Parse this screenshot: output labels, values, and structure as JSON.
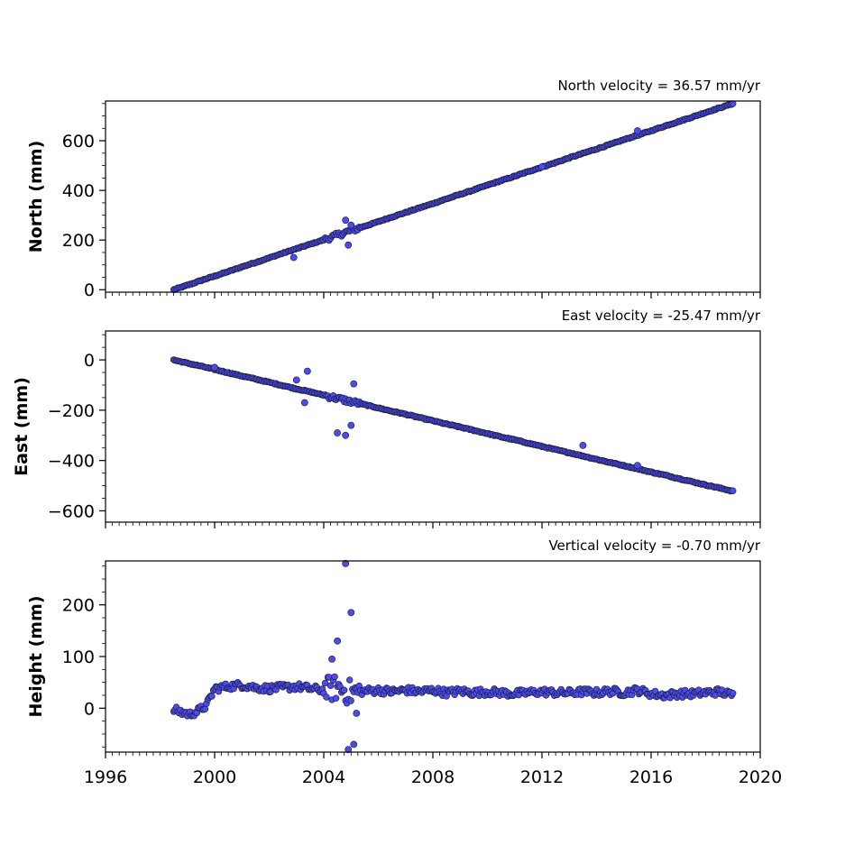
{
  "colors": {
    "marker_fill": "#4b4bf0",
    "marker_edge": "#1a1a2e",
    "axis": "#000000"
  },
  "chart_data": [
    {
      "type": "scatter",
      "title": "North velocity = 36.57 mm/yr",
      "ylabel": "North (mm)",
      "xlabel": "",
      "xlim": [
        1996,
        2020
      ],
      "ylim": [
        -10,
        760
      ],
      "yticks": [
        0,
        200,
        400,
        600
      ],
      "ytick_labels": [
        "0",
        "200",
        "400",
        "600"
      ],
      "show_xtick_labels": false,
      "grid": false,
      "series": [
        {
          "x": [
            1998.5,
            1999.0,
            1999.5,
            2000.0,
            2000.5,
            2001.0,
            2001.5,
            2002.0,
            2002.5,
            2003.0,
            2003.5,
            2004.0,
            2004.5,
            2004.8,
            2005.0,
            2005.2,
            2005.5,
            2006.0,
            2006.5,
            2007.0,
            2007.5,
            2008.0,
            2008.5,
            2009.0,
            2009.5,
            2010.0,
            2010.5,
            2011.0,
            2011.5,
            2012.0,
            2012.5,
            2013.0,
            2013.5,
            2014.0,
            2014.5,
            2015.0,
            2015.5,
            2016.0,
            2016.5,
            2017.0,
            2017.5,
            2018.0,
            2018.5,
            2019.0
          ],
          "y": [
            0,
            18,
            37,
            55,
            73,
            92,
            110,
            128,
            147,
            165,
            183,
            201,
            220,
            231,
            238,
            245,
            256,
            274,
            293,
            311,
            329,
            347,
            366,
            384,
            402,
            421,
            439,
            457,
            476,
            494,
            512,
            531,
            549,
            567,
            585,
            604,
            622,
            640,
            659,
            677,
            695,
            714,
            732,
            750
          ]
        }
      ],
      "outliers": {
        "x": [
          2002.9,
          2004.8,
          2004.9,
          2005.0,
          2012.0,
          2015.5
        ],
        "y": [
          130,
          280,
          180,
          260,
          495,
          640
        ]
      }
    },
    {
      "type": "scatter",
      "title": "East velocity = -25.47 mm/yr",
      "ylabel": "East (mm)",
      "xlabel": "",
      "xlim": [
        1996,
        2020
      ],
      "ylim": [
        -645,
        115
      ],
      "yticks": [
        0,
        -200,
        -400,
        -600
      ],
      "ytick_labels": [
        "0",
        "−200",
        "−400",
        "−600"
      ],
      "show_xtick_labels": false,
      "grid": false,
      "series": [
        {
          "x": [
            1998.5,
            1999.0,
            1999.5,
            2000.0,
            2000.5,
            2001.0,
            2001.5,
            2002.0,
            2002.5,
            2003.0,
            2003.5,
            2004.0,
            2004.5,
            2005.0,
            2005.5,
            2006.0,
            2006.5,
            2007.0,
            2007.5,
            2008.0,
            2008.5,
            2009.0,
            2009.5,
            2010.0,
            2010.5,
            2011.0,
            2011.5,
            2012.0,
            2012.5,
            2013.0,
            2013.5,
            2014.0,
            2014.5,
            2015.0,
            2015.5,
            2016.0,
            2016.5,
            2017.0,
            2017.5,
            2018.0,
            2018.5,
            2019.0
          ],
          "y": [
            0,
            -13,
            -25,
            -38,
            -51,
            -64,
            -76,
            -89,
            -102,
            -115,
            -127,
            -140,
            -153,
            -166,
            -178,
            -191,
            -204,
            -216,
            -229,
            -242,
            -255,
            -267,
            -280,
            -293,
            -306,
            -318,
            -331,
            -344,
            -357,
            -369,
            -382,
            -395,
            -408,
            -420,
            -433,
            -446,
            -458,
            -471,
            -484,
            -497,
            -509,
            -522
          ]
        }
      ],
      "outliers": {
        "x": [
          2000.0,
          2003.0,
          2003.3,
          2003.4,
          2004.5,
          2004.8,
          2005.0,
          2005.1,
          2013.5,
          2015.5
        ],
        "y": [
          -30,
          -80,
          -170,
          -45,
          -290,
          -300,
          -260,
          -95,
          -340,
          -420
        ]
      }
    },
    {
      "type": "scatter",
      "title": "Vertical velocity = -0.70 mm/yr",
      "ylabel": "Height (mm)",
      "xlabel": "",
      "xlim": [
        1996,
        2020
      ],
      "ylim": [
        -85,
        285
      ],
      "yticks": [
        0,
        100,
        200
      ],
      "ytick_labels": [
        "0",
        "100",
        "200"
      ],
      "xticks": [
        1996,
        2000,
        2004,
        2008,
        2012,
        2016,
        2020
      ],
      "xtick_labels": [
        "1996",
        "2000",
        "2004",
        "2008",
        "2012",
        "2016",
        "2020"
      ],
      "show_xtick_labels": true,
      "grid": false,
      "series": [
        {
          "x": [
            1998.5,
            1998.8,
            1999.1,
            1999.4,
            1999.7,
            2000.0,
            2000.5,
            2001.0,
            2001.5,
            2002.0,
            2002.5,
            2003.0,
            2003.5,
            2004.0,
            2004.5,
            2005.0,
            2005.5,
            2006.0,
            2006.5,
            2007.0,
            2007.5,
            2008.0,
            2008.5,
            2009.0,
            2009.5,
            2010.0,
            2010.5,
            2011.0,
            2011.5,
            2012.0,
            2012.5,
            2013.0,
            2013.5,
            2014.0,
            2014.5,
            2015.0,
            2015.5,
            2016.0,
            2016.5,
            2017.0,
            2017.5,
            2018.0,
            2018.5,
            2019.0
          ],
          "y": [
            -3,
            -8,
            -12,
            -5,
            5,
            38,
            42,
            45,
            40,
            38,
            40,
            42,
            38,
            35,
            40,
            30,
            33,
            35,
            32,
            35,
            32,
            35,
            30,
            33,
            30,
            32,
            30,
            28,
            30,
            32,
            30,
            30,
            32,
            30,
            33,
            30,
            35,
            28,
            25,
            28,
            28,
            30,
            32,
            25
          ]
        }
      ],
      "outliers": {
        "x": [
          2004.5,
          2004.8,
          2004.9,
          2005.0,
          2005.1,
          2005.2,
          2004.3
        ],
        "y": [
          130,
          280,
          -80,
          185,
          -70,
          -10,
          95
        ]
      }
    }
  ]
}
